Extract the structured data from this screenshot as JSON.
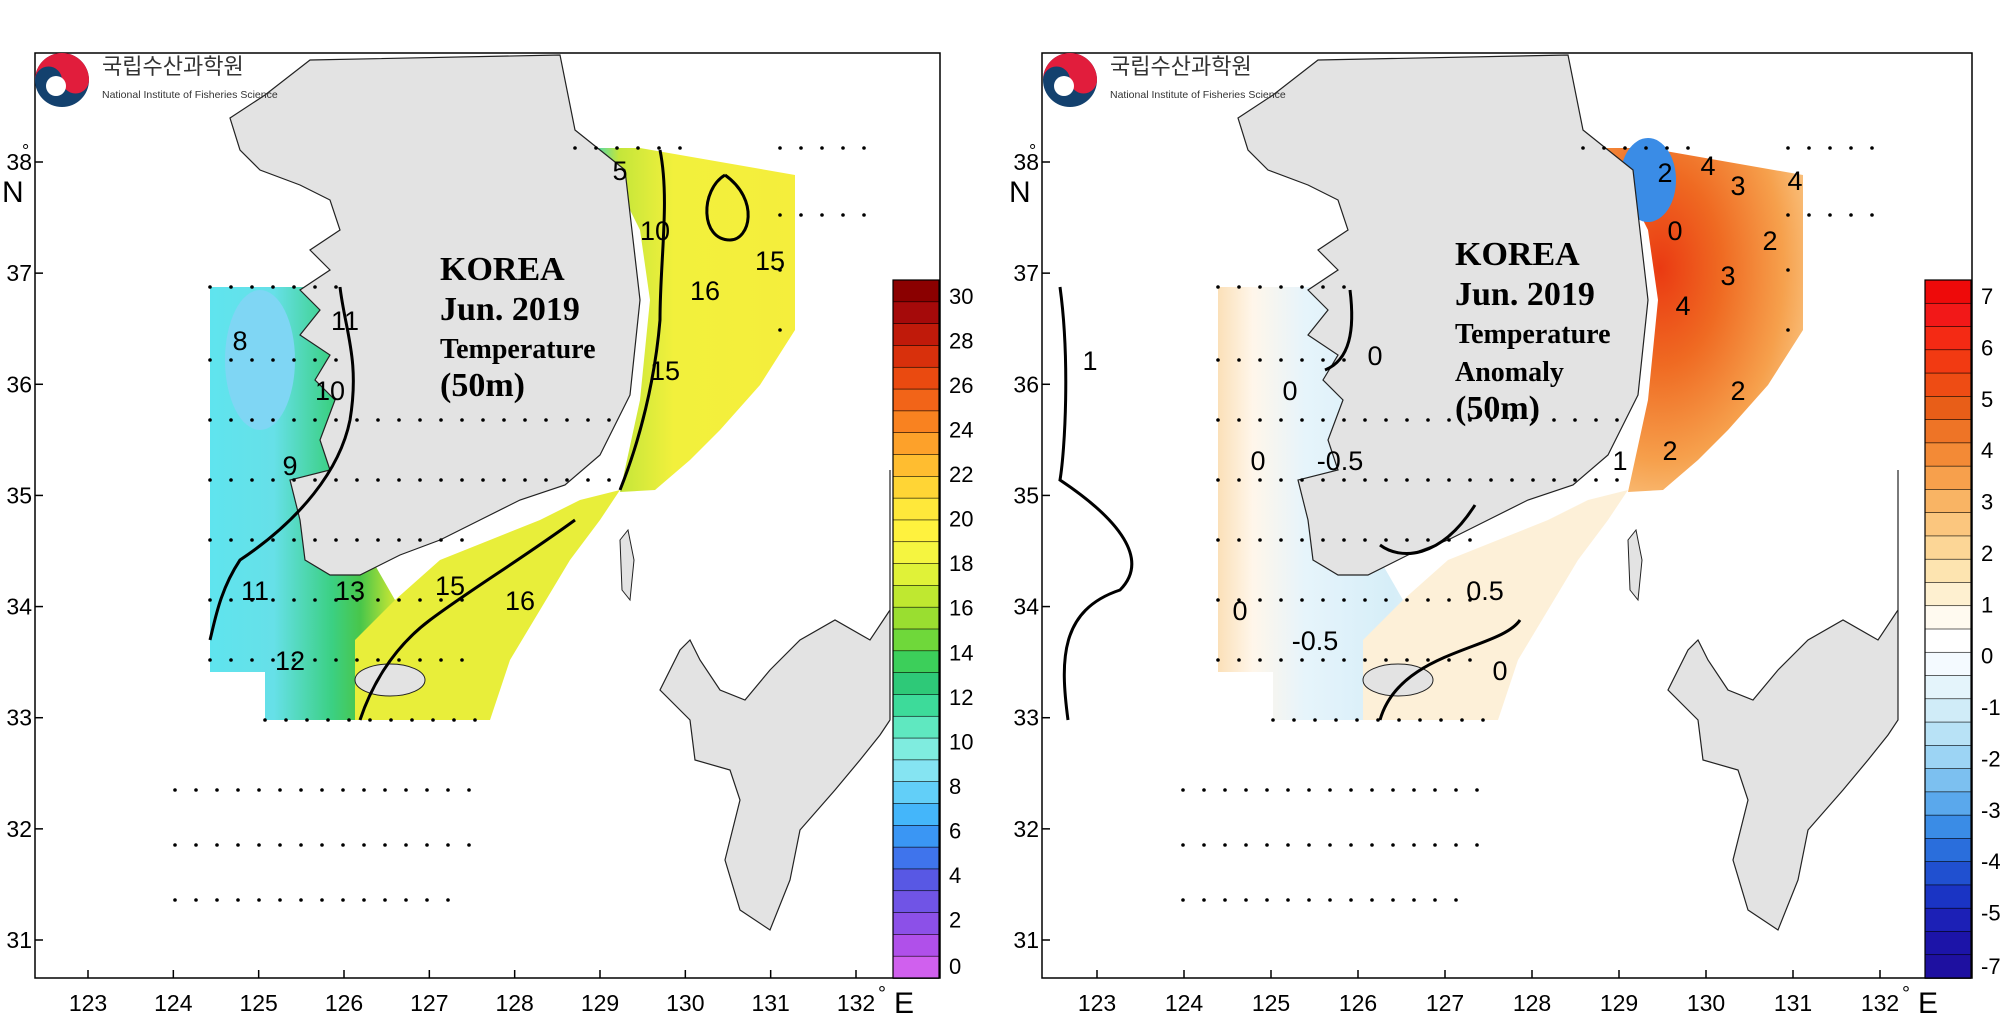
{
  "institute": {
    "korean_name": "국립수산과학원",
    "english_name": "National Institute of Fisheries Science"
  },
  "axes": {
    "lon_ticks": [
      "123",
      "124",
      "125",
      "126",
      "127",
      "128",
      "129",
      "130",
      "131",
      "132"
    ],
    "lon_unit": "°",
    "lon_dir": "E",
    "lat_ticks": [
      "31",
      "32",
      "33",
      "34",
      "35",
      "36",
      "37",
      "38"
    ],
    "lat_unit": "°",
    "lat_dir": "N"
  },
  "panels": [
    {
      "id": "temperature",
      "title_lines": [
        "KOREA",
        "Jun. 2019",
        "Temperature",
        "(50m)"
      ],
      "colorbar": {
        "labels": [
          "30",
          "28",
          "26",
          "24",
          "22",
          "20",
          "18",
          "16",
          "14",
          "12",
          "10",
          "8",
          "6",
          "4",
          "2",
          "0"
        ],
        "colors": [
          "#8b0000",
          "#a50a0a",
          "#c01a0a",
          "#d8300c",
          "#ea4a10",
          "#f26418",
          "#f98220",
          "#fda12a",
          "#ffbd30",
          "#ffd535",
          "#ffe83a",
          "#fff23e",
          "#f5f540",
          "#e0f238",
          "#bfe830",
          "#9ade30",
          "#6fd83a",
          "#3ccf5a",
          "#2ec978",
          "#3ddb9a",
          "#5fe8c0",
          "#7fecdf",
          "#85e4f2",
          "#62cff8",
          "#44b6fa",
          "#3a96f4",
          "#3f74ec",
          "#5858e4",
          "#7054e6",
          "#8c50e8",
          "#b050ea",
          "#d060ee"
        ]
      },
      "contour_labels": [
        "5",
        "10",
        "15",
        "16",
        "15",
        "11",
        "10",
        "8",
        "9",
        "11",
        "13",
        "12",
        "15",
        "16"
      ]
    },
    {
      "id": "anomaly",
      "title_lines": [
        "KOREA",
        "Jun. 2019",
        "Temperature",
        "Anomaly",
        "(50m)"
      ],
      "colorbar": {
        "labels": [
          "7",
          "6",
          "5",
          "4",
          "3",
          "2",
          "1",
          "0",
          "-1",
          "-2",
          "-3",
          "-4",
          "-5",
          "-7"
        ],
        "colors": [
          "#ee0a0a",
          "#f21818",
          "#f42a14",
          "#f23a12",
          "#ee4c14",
          "#e85e18",
          "#ee7426",
          "#f38a36",
          "#f7a04c",
          "#f9b464",
          "#fbc67e",
          "#fcd696",
          "#fde4b0",
          "#fef0d0",
          "#fffaf0",
          "#ffffff",
          "#f4faff",
          "#e4f4fb",
          "#d0ecf8",
          "#b8e2f6",
          "#9cd4f4",
          "#7cc0f0",
          "#5aa8ec",
          "#3a8ce6",
          "#2a6edc",
          "#2050d0",
          "#1a34c4",
          "#1c20b6",
          "#1c14a8",
          "#1e10a0"
        ]
      },
      "contour_labels": [
        "2",
        "0",
        "4",
        "3",
        "4",
        "2",
        "3",
        "4",
        "2",
        "2",
        "1",
        "0",
        "1",
        "0",
        "-0.5",
        "0",
        "0.5",
        "-0.5",
        "0",
        "0"
      ]
    }
  ]
}
